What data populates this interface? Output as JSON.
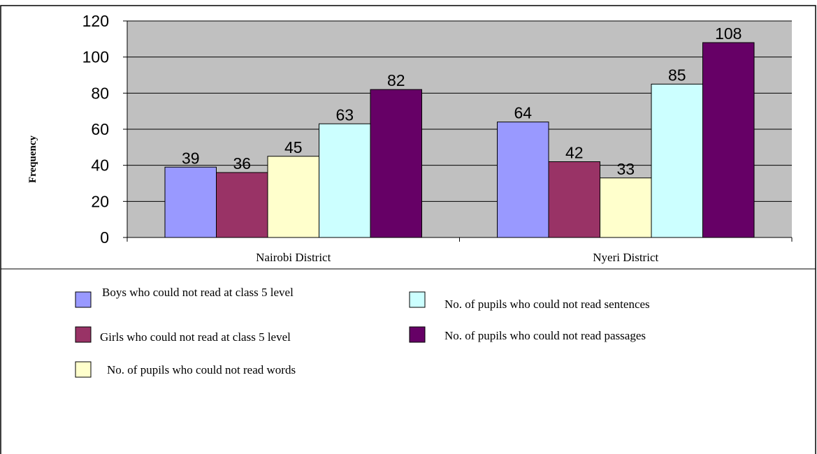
{
  "chart_data": {
    "type": "bar",
    "categories": [
      "Nairobi District",
      "Nyeri District"
    ],
    "series": [
      {
        "name": "Boys who could not read at class 5 level",
        "values": [
          39,
          64
        ],
        "color": "#9999ff"
      },
      {
        "name": "Girls who could not read at class 5 level",
        "values": [
          36,
          42
        ],
        "color": "#993366"
      },
      {
        "name": "No. of pupils who could not read words",
        "values": [
          45,
          33
        ],
        "color": "#ffffcc"
      },
      {
        "name": "No. of pupils who could not read sentences",
        "values": [
          63,
          85
        ],
        "color": "#ccffff"
      },
      {
        "name": "No. of pupils who could not read passages",
        "values": [
          82,
          108
        ],
        "color": "#660066"
      }
    ],
    "title": "",
    "xlabel": "",
    "ylabel": "Frequency",
    "ylim": [
      0,
      120
    ],
    "yticks": [
      "0",
      "20",
      "40",
      "60",
      "80",
      "100",
      "120"
    ],
    "grid": true,
    "plot_background": "#c0c0c0",
    "legend_position": "bottom"
  }
}
